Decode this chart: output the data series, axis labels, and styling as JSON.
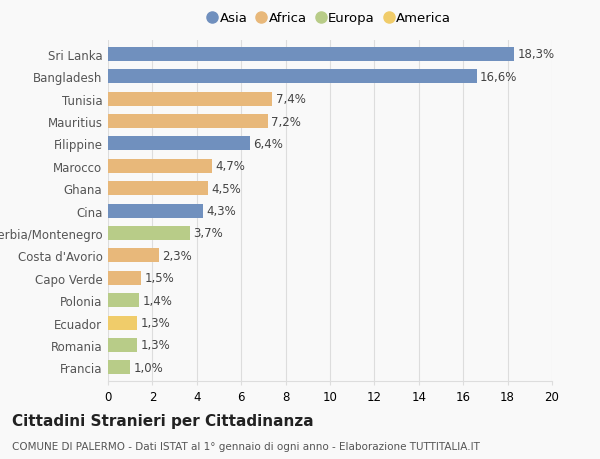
{
  "categories": [
    "Sri Lanka",
    "Bangladesh",
    "Tunisia",
    "Mauritius",
    "Filippine",
    "Marocco",
    "Ghana",
    "Cina",
    "Serbia/Montenegro",
    "Costa d'Avorio",
    "Capo Verde",
    "Polonia",
    "Ecuador",
    "Romania",
    "Francia"
  ],
  "values": [
    18.3,
    16.6,
    7.4,
    7.2,
    6.4,
    4.7,
    4.5,
    4.3,
    3.7,
    2.3,
    1.5,
    1.4,
    1.3,
    1.3,
    1.0
  ],
  "labels": [
    "18,3%",
    "16,6%",
    "7,4%",
    "7,2%",
    "6,4%",
    "4,7%",
    "4,5%",
    "4,3%",
    "3,7%",
    "2,3%",
    "1,5%",
    "1,4%",
    "1,3%",
    "1,3%",
    "1,0%"
  ],
  "continents": [
    "Asia",
    "Asia",
    "Africa",
    "Africa",
    "Asia",
    "Africa",
    "Africa",
    "Asia",
    "Europa",
    "Africa",
    "Africa",
    "Europa",
    "America",
    "Europa",
    "Europa"
  ],
  "continent_colors": {
    "Asia": "#7090be",
    "Africa": "#e8b87a",
    "Europa": "#b8cc88",
    "America": "#f0cc6a"
  },
  "legend_order": [
    "Asia",
    "Africa",
    "Europa",
    "America"
  ],
  "xlim": [
    0,
    20
  ],
  "xticks": [
    0,
    2,
    4,
    6,
    8,
    10,
    12,
    14,
    16,
    18,
    20
  ],
  "title": "Cittadini Stranieri per Cittadinanza",
  "subtitle": "COMUNE DI PALERMO - Dati ISTAT al 1° gennaio di ogni anno - Elaborazione TUTTITALIA.IT",
  "bg_color": "#f9f9f9",
  "grid_color": "#dddddd",
  "bar_height": 0.62,
  "label_fontsize": 8.5,
  "tick_fontsize": 8.5,
  "title_fontsize": 11,
  "subtitle_fontsize": 7.5,
  "legend_fontsize": 9.5
}
